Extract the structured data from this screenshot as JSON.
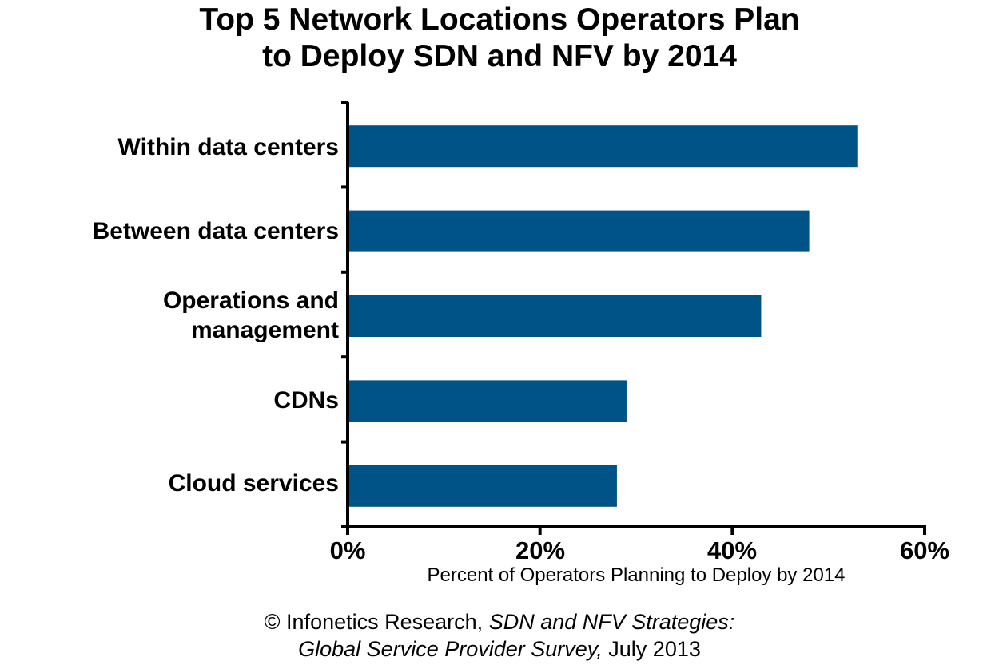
{
  "chart_data": {
    "type": "bar",
    "orientation": "horizontal",
    "title": [
      "Top 5 Network Locations Operators Plan",
      "to Deploy SDN and NFV by 2014"
    ],
    "categories": [
      [
        "Within data centers"
      ],
      [
        "Between data centers"
      ],
      [
        "Operations and",
        "management"
      ],
      [
        "CDNs"
      ],
      [
        "Cloud services"
      ]
    ],
    "values": [
      53,
      48,
      43,
      29,
      28
    ],
    "xlabel": "Percent of Operators Planning to Deploy by 2014",
    "ylabel": "",
    "xlim": [
      0,
      60
    ],
    "xticks": [
      "0%",
      "20%",
      "40%",
      "60%"
    ],
    "grid": false,
    "bar_color": "#005386"
  },
  "source": {
    "line1_prefix": "© Infonetics Research, ",
    "line1_italic": "SDN and NFV Strategies:",
    "line2_italic": "Global Service Provider Survey,",
    "line2_suffix": " July 2013"
  }
}
